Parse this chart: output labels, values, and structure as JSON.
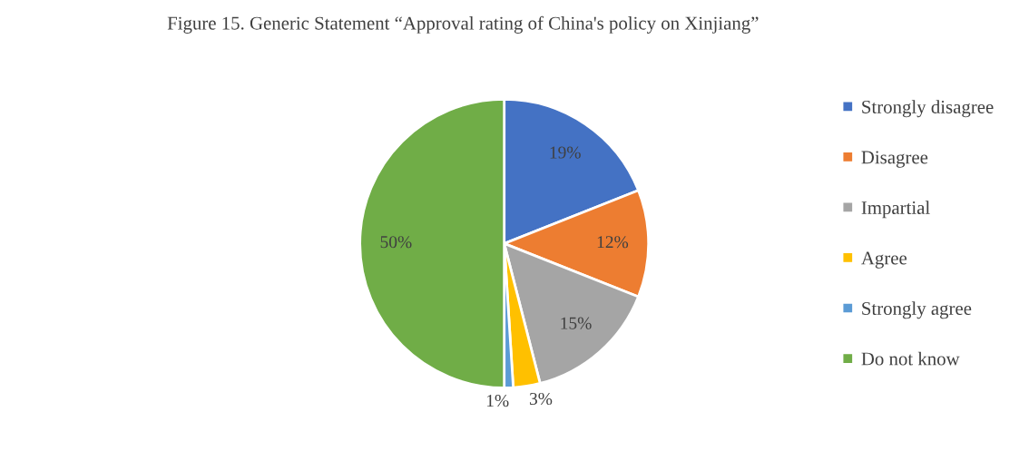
{
  "chart_data": {
    "type": "pie",
    "title": "Figure 15. Generic Statement “Approval rating of China's policy on Xinjiang”",
    "categories": [
      "Strongly disagree",
      "Disagree",
      "Impartial",
      "Agree",
      "Strongly agree",
      "Do not know"
    ],
    "values": [
      19,
      12,
      15,
      3,
      1,
      50
    ],
    "colors": [
      "#4472c4",
      "#ed7d31",
      "#a5a5a5",
      "#ffc000",
      "#5b9bd5",
      "#70ad47"
    ],
    "value_labels": [
      "19%",
      "12%",
      "15%",
      "3%",
      "1%",
      "50%"
    ],
    "legend": "right"
  }
}
